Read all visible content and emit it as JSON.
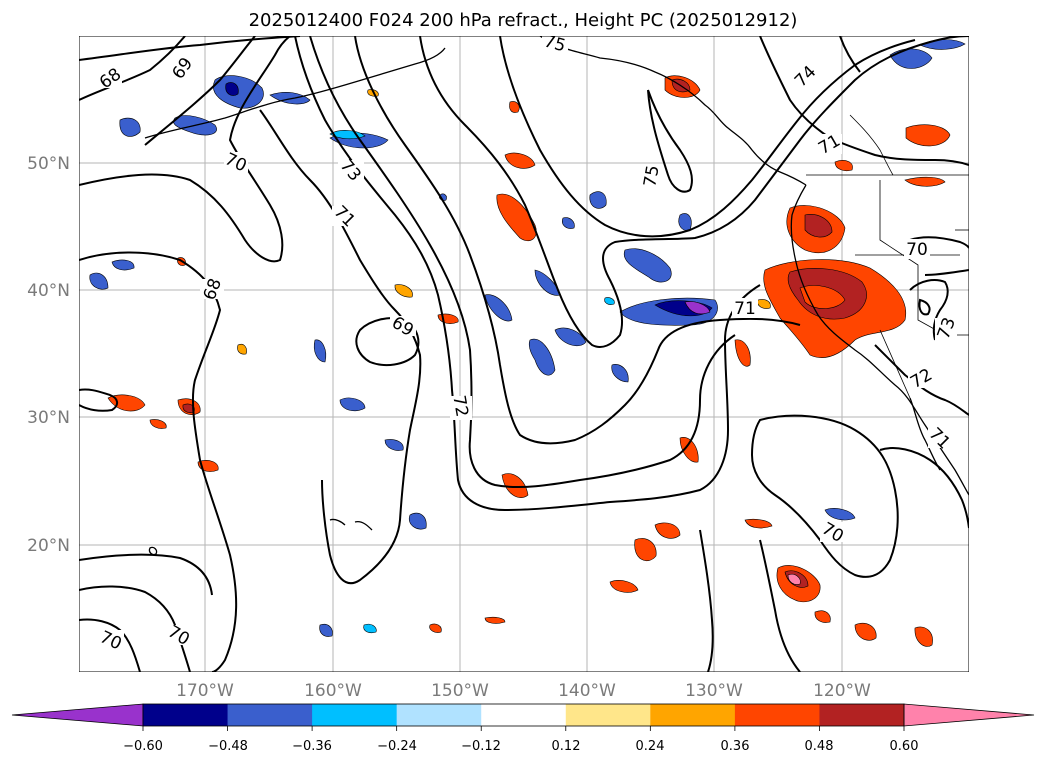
{
  "title": "2025012400 F024 200 hPa refract., Height PC (2025012912)",
  "lat_labels": [
    "50°N",
    "40°N",
    "30°N",
    "20°N"
  ],
  "lon_labels": [
    "170°W",
    "160°W",
    "150°W",
    "140°W",
    "130°W",
    "120°W"
  ],
  "colorbar": {
    "ticks": [
      "−0.60",
      "−0.48",
      "−0.36",
      "−0.24",
      "−0.12",
      "0.12",
      "0.24",
      "0.36",
      "0.48",
      "0.60"
    ],
    "colors": [
      "#9932cc",
      "#00008b",
      "#3a5fcd",
      "#00bfff",
      "#b0e2ff",
      "#ffffff",
      "#ffe68a",
      "#ffa500",
      "#ff4500",
      "#b22222",
      "#ff82ab"
    ]
  },
  "contour_labels": [
    "68",
    "69",
    "70",
    "73",
    "71",
    "68",
    "69",
    "72",
    "75",
    "75",
    "74",
    "71",
    "70",
    "71",
    "73",
    "72",
    "71",
    "70",
    "70",
    "70",
    "68"
  ]
}
